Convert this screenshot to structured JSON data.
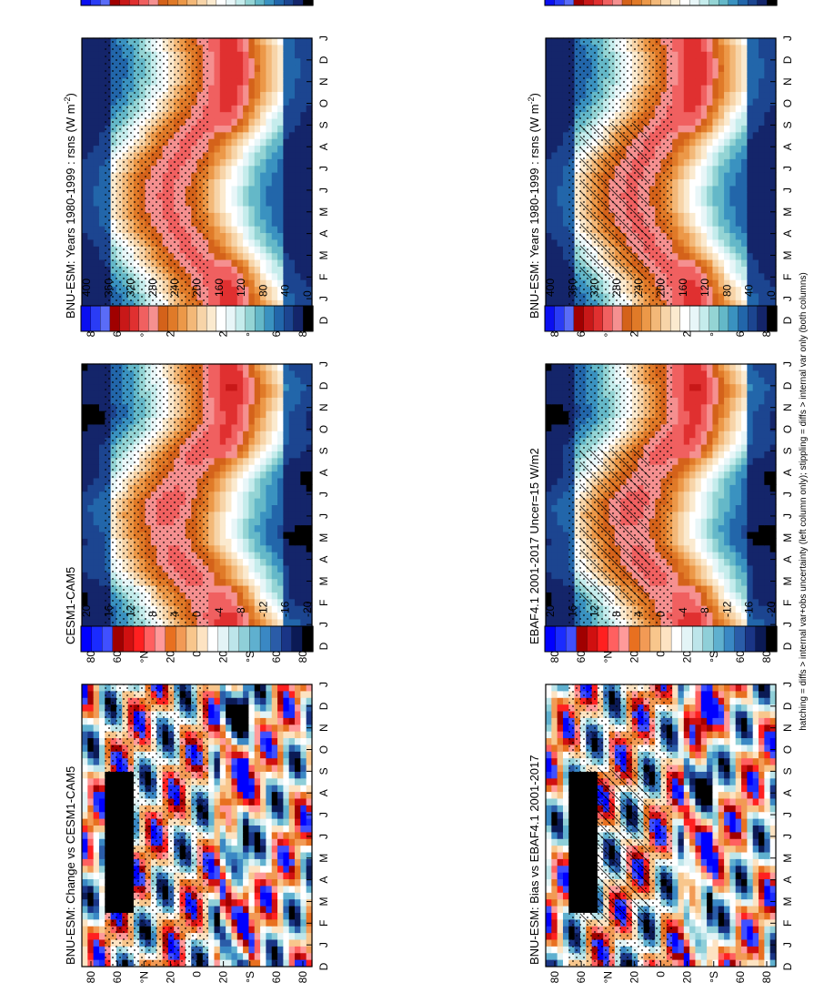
{
  "figure": {
    "orientation": "rotated 90 degrees counter-clockwise",
    "footnote": "hatching = diffs > internal var+obs uncertainty (left column only); stippling = diffs > internal var only (both columns)"
  },
  "colorbars": {
    "abs": {
      "ticks": [
        "400",
        "360",
        "320",
        "280",
        "240",
        "200",
        "160",
        "120",
        "80",
        "40",
        "0"
      ],
      "colors": [
        "#0a0ff0",
        "#2a3cf5",
        "#5a6cf7",
        "#a00000",
        "#c81818",
        "#e03030",
        "#f06060",
        "#f59090",
        "#d4621a",
        "#e07a28",
        "#ec9848",
        "#f3b878",
        "#f7d4a8",
        "#fbeacf",
        "#ffffff",
        "#e8f6f8",
        "#c5ecec",
        "#94d4d4",
        "#64b8c8",
        "#3a92c0",
        "#2266aa",
        "#1c4590",
        "#14256a",
        "#000000"
      ]
    },
    "diff": {
      "ticks": [
        "20",
        "16",
        "12",
        "8",
        "4",
        "0",
        "-4",
        "-8",
        "-12",
        "-16",
        "-20"
      ],
      "colors": [
        "#0000ff",
        "#1a2bff",
        "#4050ff",
        "#a00000",
        "#d01010",
        "#ff2020",
        "#ff6060",
        "#ff9a9a",
        "#e87020",
        "#f29a55",
        "#f8c68c",
        "#fde3c2",
        "#ffffff",
        "#e3f4f6",
        "#bde5ea",
        "#8fcfd8",
        "#5fb0cf",
        "#3a88c4",
        "#2a5ca8",
        "#1a3586",
        "#0b1a55",
        "#000000"
      ]
    }
  },
  "panels": [
    {
      "id": "obs-left-top",
      "title": "BNU-ESM: Years 1980-1999 : rsns (W m",
      "title_sup": "-2",
      "title_end": ")",
      "kind": "abs",
      "hatch": true
    },
    {
      "id": "obs-left-mid",
      "title": "EBAF4.1 2001-2017 Uncer=15 W/m2",
      "kind": "abs",
      "hatch": true
    },
    {
      "id": "obs-left-bot",
      "title": "BNU-ESM: Bias vs EBAF4.1 2001-2017",
      "kind": "diff",
      "hatch": true
    },
    {
      "id": "right-top",
      "title": "BNU-ESM: Years 1980-1999 : rsns (W m",
      "title_sup": "-2",
      "title_end": ")",
      "kind": "abs",
      "hatch": false
    },
    {
      "id": "right-mid",
      "title": "CESM1-CAM5",
      "kind": "abs",
      "hatch": false
    },
    {
      "id": "right-bot",
      "title": "BNU-ESM: Change vs CESM1-CAM5",
      "kind": "diff",
      "hatch": false
    }
  ],
  "axes": {
    "months": [
      "D",
      "J",
      "F",
      "M",
      "A",
      "M",
      "J",
      "J",
      "A",
      "S",
      "O",
      "N",
      "D",
      "J"
    ],
    "lat_labels": [
      "80",
      "60",
      "°N",
      "20",
      "0",
      "20",
      "°S",
      "60",
      "80"
    ]
  },
  "chart_data": {
    "type": "heatmap",
    "title": "",
    "x": [
      "D",
      "J",
      "F",
      "M",
      "A",
      "M",
      "J",
      "J",
      "A",
      "S",
      "O",
      "N",
      "D",
      "J"
    ],
    "y": [
      "80",
      "60",
      "°N",
      "20",
      "0",
      "20",
      "°S",
      "60",
      "80"
    ],
    "panels": [
      "BNU-ESM: Years 1980-1999 : rsns (W m-2)",
      "EBAF4.1 2001-2017 Uncer=15 W/m2",
      "BNU-ESM: Bias vs EBAF4.1 2001-2017",
      "BNU-ESM: Years 1980-1999 : rsns (W m-2)",
      "CESM1-CAM5",
      "BNU-ESM: Change vs CESM1-CAM5"
    ],
    "abs_colorbar_range": [
      0,
      400
    ],
    "diff_colorbar_range": [
      -20,
      20
    ]
  }
}
